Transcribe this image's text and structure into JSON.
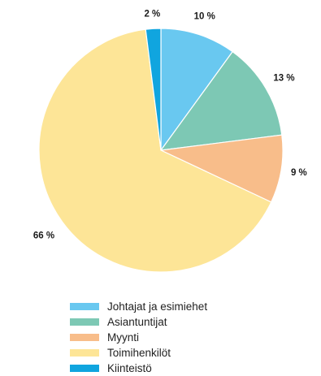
{
  "chart_data": {
    "type": "pie",
    "start_angle_deg": 0,
    "direction": "clockwise",
    "slices": [
      {
        "name": "Johtajat ja esimiehet",
        "value": 10,
        "label": "10 %",
        "color": "#69c8f0"
      },
      {
        "name": "Asiantuntijat",
        "value": 13,
        "label": "13 %",
        "color": "#7dc8b4"
      },
      {
        "name": "Myynti",
        "value": 9,
        "label": "9 %",
        "color": "#f8bd8a"
      },
      {
        "name": "Toimihenkilöt",
        "value": 66,
        "label": "66 %",
        "color": "#fde597"
      },
      {
        "name": "Kiinteistö",
        "value": 2,
        "label": "2 %",
        "color": "#10a5df"
      }
    ],
    "legend_position": "bottom"
  }
}
